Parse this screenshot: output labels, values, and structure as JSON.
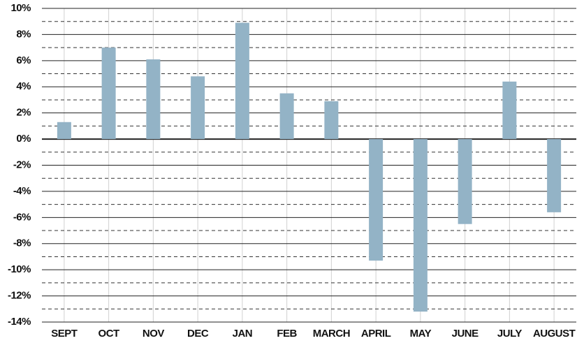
{
  "chart_data": {
    "type": "bar",
    "categories": [
      "SEPT",
      "OCT",
      "NOV",
      "DEC",
      "JAN",
      "FEB",
      "MARCH",
      "APRIL",
      "MAY",
      "JUNE",
      "JULY",
      "AUGUST"
    ],
    "values": [
      1.3,
      7.0,
      6.1,
      4.8,
      8.9,
      3.5,
      2.9,
      -9.3,
      -13.2,
      -6.5,
      4.4,
      -5.6
    ],
    "color": "#93b3c6",
    "ylim": [
      -14,
      10
    ],
    "yticks": [
      {
        "value": -14,
        "label": "-14%"
      },
      {
        "value": -12,
        "label": "-12%"
      },
      {
        "value": -10,
        "label": "-10%"
      },
      {
        "value": -8,
        "label": "-8%"
      },
      {
        "value": -6,
        "label": "-6%"
      },
      {
        "value": -4,
        "label": "-4%"
      },
      {
        "value": -2,
        "label": "-2%"
      },
      {
        "value": 0,
        "label": "0%"
      },
      {
        "value": 2,
        "label": "2%"
      },
      {
        "value": 4,
        "label": "4%"
      },
      {
        "value": 6,
        "label": "6%"
      },
      {
        "value": 8,
        "label": "8%"
      },
      {
        "value": 10,
        "label": "10%"
      }
    ],
    "grid": true
  }
}
